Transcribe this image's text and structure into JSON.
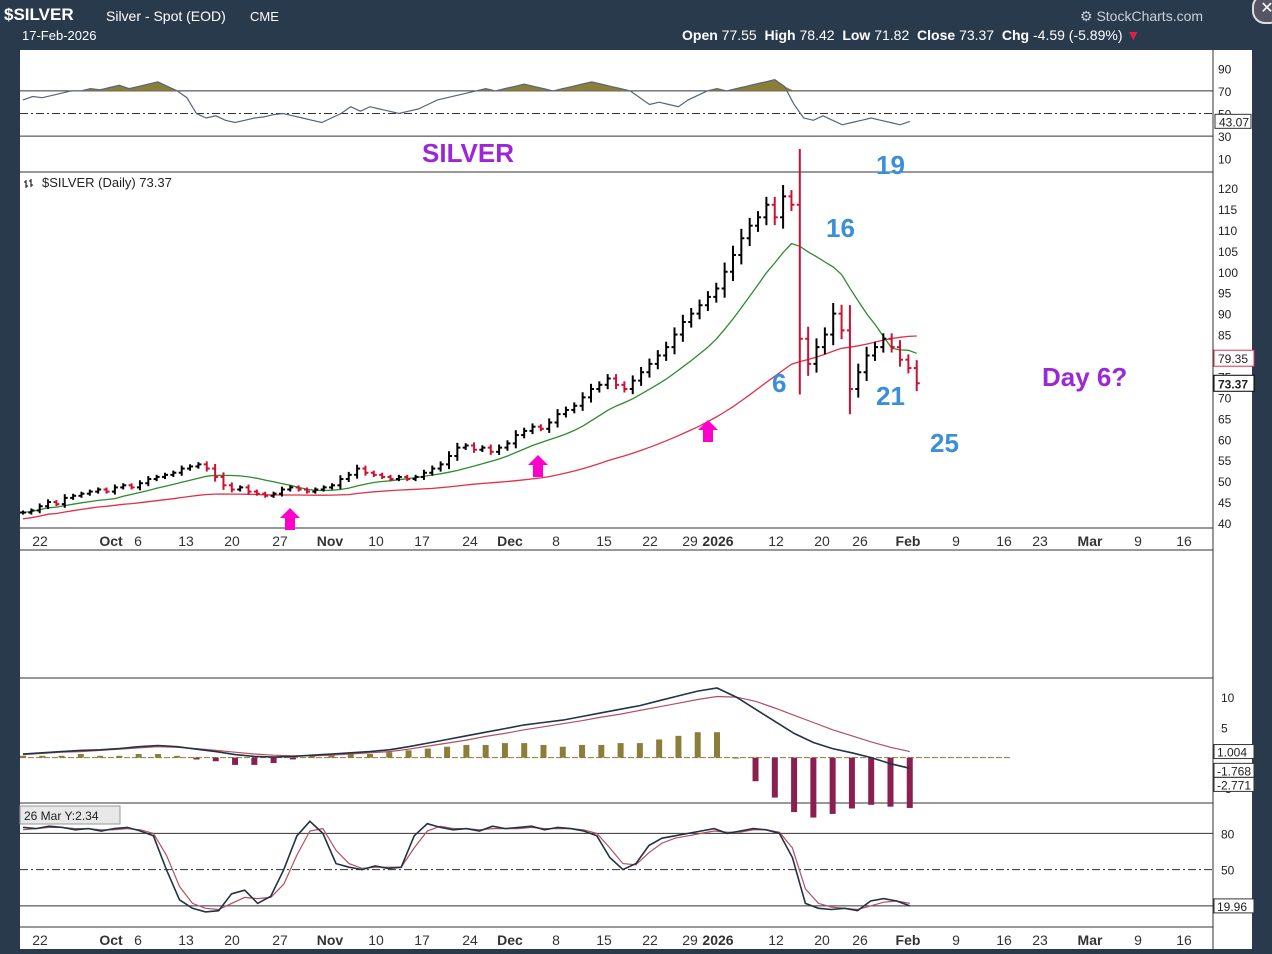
{
  "header": {
    "symbol": "$SILVER",
    "name": "Silver - Spot (EOD)",
    "exchange": "CME",
    "date": "17-Feb-2026",
    "watermark": "StockCharts.com",
    "open_label": "Open",
    "open": "77.55",
    "high_label": "High",
    "high": "78.42",
    "low_label": "Low",
    "low": "71.82",
    "close_label": "Close",
    "close": "73.37",
    "chg_label": "Chg",
    "chg": "-4.59 (-5.89%)"
  },
  "colors": {
    "frame": "#2a3a4d",
    "panel_bg": "#ffffff",
    "up_bar": "#000000",
    "down_bar": "#cc1133",
    "ma_fast": "#2e8b2e",
    "ma_slow": "#e0304a",
    "rsi_fill": "#8b7d3a",
    "macd_line": "#223344",
    "macd_signal": "#b05060",
    "hist_pos": "#8b7d3a",
    "hist_neg": "#8a2050",
    "annot_blue": "#3a8fd8",
    "annot_purple": "#9b27d8",
    "arrow_magenta": "#ff00cc"
  },
  "chart_data": [
    {
      "type": "line",
      "panel": "rsi",
      "y_ticks": [
        90,
        70,
        50,
        30,
        10
      ],
      "ylim": [
        0,
        100
      ],
      "reference_lines": [
        70,
        50,
        30
      ],
      "current_value_label": "43.07",
      "values": [
        62,
        65,
        64,
        66,
        68,
        70,
        70,
        72,
        71,
        73,
        75,
        72,
        74,
        76,
        78,
        74,
        70,
        64,
        50,
        46,
        48,
        44,
        42,
        44,
        46,
        47,
        49,
        50,
        48,
        46,
        44,
        42,
        46,
        50,
        56,
        52,
        56,
        54,
        52,
        50,
        52,
        54,
        58,
        62,
        64,
        66,
        68,
        70,
        72,
        70,
        72,
        74,
        76,
        74,
        72,
        70,
        72,
        74,
        76,
        78,
        76,
        74,
        72,
        70,
        64,
        58,
        60,
        58,
        56,
        62,
        66,
        70,
        72,
        70,
        72,
        74,
        76,
        78,
        80,
        74,
        58,
        46,
        44,
        48,
        44,
        40,
        42,
        44,
        46,
        44,
        42,
        40,
        43
      ]
    },
    {
      "type": "bar",
      "panel": "price",
      "legend": "$SILVER (Daily) 73.37",
      "title": "SILVER",
      "y_ticks": [
        120,
        115,
        110,
        105,
        100,
        95,
        90,
        85,
        80,
        75,
        70,
        65,
        60,
        55,
        50,
        45,
        40
      ],
      "ylim": [
        40,
        121
      ],
      "x_tick_labels": [
        "22",
        "Oct",
        "6",
        "13",
        "20",
        "27",
        "Nov",
        "10",
        "17",
        "24",
        "Dec",
        "8",
        "15",
        "22",
        "29",
        "2026",
        "12",
        "20",
        "26",
        "Feb",
        "9",
        "16",
        "23",
        "Mar",
        "9",
        "16"
      ],
      "price_labels": [
        "79.35",
        "73.37"
      ],
      "annotations": [
        "19",
        "16",
        "6",
        "21",
        "25",
        "Day 6?"
      ],
      "ohlc_close": [
        42.5,
        43,
        44,
        45,
        44.5,
        46,
        46.5,
        47,
        47.5,
        48,
        47.5,
        48.5,
        49,
        48.5,
        49.5,
        50.5,
        51,
        51.5,
        52,
        53,
        53.5,
        54,
        53,
        51,
        49,
        48,
        48.5,
        47.5,
        47,
        46.5,
        47,
        48,
        48.5,
        48,
        47.5,
        48,
        48.5,
        49,
        50.5,
        51.5,
        53,
        52,
        51.5,
        51,
        50.5,
        51,
        50.5,
        51,
        52,
        53,
        54,
        56,
        58,
        58.5,
        57.5,
        58,
        57,
        58,
        59,
        61,
        62,
        63,
        62.5,
        64,
        66,
        67,
        68,
        70,
        72,
        73,
        74.5,
        73,
        72,
        74,
        76,
        78,
        80,
        82,
        85,
        88,
        90,
        92,
        94,
        96,
        100,
        104,
        108,
        111,
        113,
        116,
        113,
        118,
        116,
        84,
        78,
        82,
        85,
        90,
        86,
        72,
        76,
        80,
        82,
        84,
        82,
        79,
        77,
        73.37
      ],
      "sma20_end": 79.35,
      "sma50_end": 78.5
    },
    {
      "type": "line",
      "panel": "macd",
      "y_ticks": [
        10,
        5,
        -5
      ],
      "current_values": [
        "1.004",
        "-1.768",
        "-2.771"
      ],
      "macd": [
        0.6,
        0.8,
        1.0,
        1.2,
        1.3,
        1.5,
        1.8,
        2.0,
        1.8,
        1.4,
        1.0,
        0.5,
        0.2,
        0.1,
        0.2,
        0.4,
        0.6,
        0.8,
        1.0,
        1.3,
        1.8,
        2.4,
        3.0,
        3.6,
        4.2,
        4.8,
        5.4,
        5.8,
        6.2,
        6.8,
        7.4,
        8.0,
        8.6,
        9.4,
        10.2,
        11.0,
        11.5,
        10.0,
        8.0,
        6.0,
        4.0,
        2.5,
        1.5,
        0.8,
        0.0,
        -1.0,
        -1.768
      ],
      "signal": [
        0.5,
        0.7,
        0.9,
        1.0,
        1.2,
        1.4,
        1.6,
        1.8,
        1.7,
        1.5,
        1.2,
        0.9,
        0.6,
        0.4,
        0.3,
        0.3,
        0.4,
        0.6,
        0.8,
        1.0,
        1.4,
        1.9,
        2.4,
        2.9,
        3.5,
        4.0,
        4.6,
        5.1,
        5.6,
        6.1,
        6.7,
        7.2,
        7.8,
        8.4,
        9.0,
        9.6,
        10.1,
        10.0,
        9.3,
        8.2,
        7.0,
        5.8,
        4.6,
        3.6,
        2.6,
        1.7,
        1.004
      ]
    },
    {
      "type": "line",
      "panel": "stochastic",
      "hover_label": "26 Mar Y:2.34",
      "y_ticks": [
        80,
        50,
        20
      ],
      "reference_lines": [
        80,
        50,
        20
      ],
      "current_values": [
        "19.96"
      ],
      "k": [
        85,
        84,
        86,
        85,
        83,
        84,
        82,
        84,
        85,
        82,
        78,
        50,
        25,
        18,
        15,
        16,
        30,
        33,
        22,
        28,
        50,
        78,
        90,
        80,
        55,
        52,
        50,
        53,
        51,
        52,
        78,
        88,
        85,
        83,
        84,
        82,
        86,
        84,
        85,
        86,
        83,
        85,
        84,
        82,
        78,
        60,
        50,
        55,
        70,
        76,
        78,
        80,
        82,
        84,
        80,
        82,
        84,
        83,
        80,
        60,
        22,
        18,
        17,
        18,
        16,
        24,
        26,
        24,
        20
      ],
      "d": [
        83,
        84,
        85,
        85,
        84,
        84,
        83,
        83,
        84,
        83,
        80,
        62,
        36,
        22,
        18,
        17,
        22,
        27,
        26,
        27,
        38,
        62,
        82,
        84,
        66,
        55,
        51,
        52,
        52,
        52,
        68,
        82,
        86,
        84,
        84,
        83,
        84,
        84,
        84,
        85,
        84,
        84,
        84,
        83,
        80,
        68,
        55,
        54,
        64,
        72,
        76,
        78,
        80,
        82,
        81,
        81,
        83,
        83,
        81,
        68,
        34,
        22,
        19,
        18,
        17,
        20,
        23,
        24,
        22
      ]
    }
  ],
  "x_axis_labels": [
    "22",
    "Oct",
    "6",
    "13",
    "20",
    "27",
    "Nov",
    "10",
    "17",
    "24",
    "Dec",
    "8",
    "15",
    "22",
    "29",
    "2026",
    "12",
    "20",
    "26",
    "Feb",
    "9",
    "16",
    "23",
    "Mar",
    "9",
    "16"
  ]
}
